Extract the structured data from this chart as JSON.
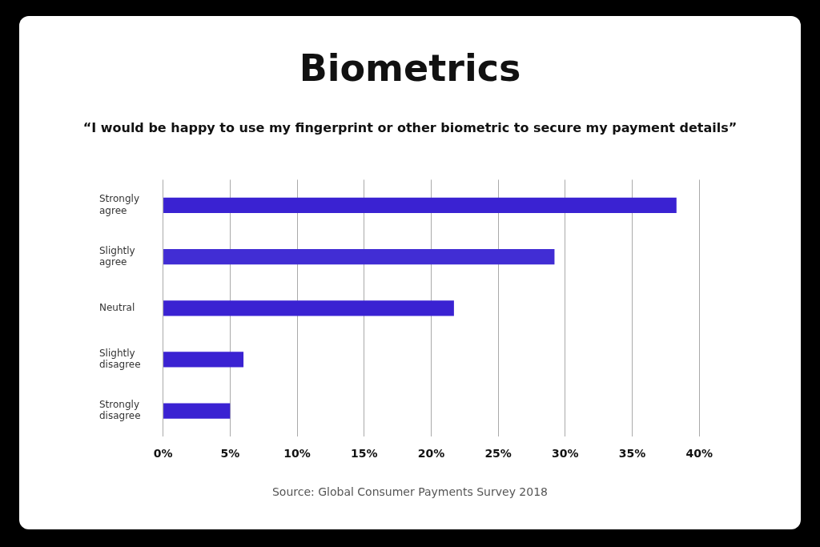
{
  "chart_data": {
    "type": "bar",
    "orientation": "horizontal",
    "title": "Biometrics",
    "subtitle": "“I would be happy to use my fingerprint or other biometric to secure my payment details”",
    "categories": [
      "Strongly agree",
      "Slightly agree",
      "Neutral",
      "Slightly disagree",
      "Strongly disagree"
    ],
    "values": [
      38.3,
      29.2,
      21.7,
      6.0,
      5.0
    ],
    "colors": [
      "#3a22d2",
      "#412dd4",
      "#3a22d2",
      "#3a22d2",
      "#3a22d2"
    ],
    "xlim": [
      0,
      40
    ],
    "xticks": [
      {
        "value": 0,
        "label": "0%"
      },
      {
        "value": 5,
        "label": "5%"
      },
      {
        "value": 10,
        "label": "10%"
      },
      {
        "value": 15,
        "label": "15%"
      },
      {
        "value": 20,
        "label": "20%"
      },
      {
        "value": 25,
        "label": "25%"
      },
      {
        "value": 30,
        "label": "30%"
      },
      {
        "value": 35,
        "label": "35%"
      },
      {
        "value": 40,
        "label": "40%"
      }
    ],
    "grid": "x",
    "legend": false,
    "annotations": [
      "Source: Global Consumer Payments Survey 2018"
    ]
  }
}
